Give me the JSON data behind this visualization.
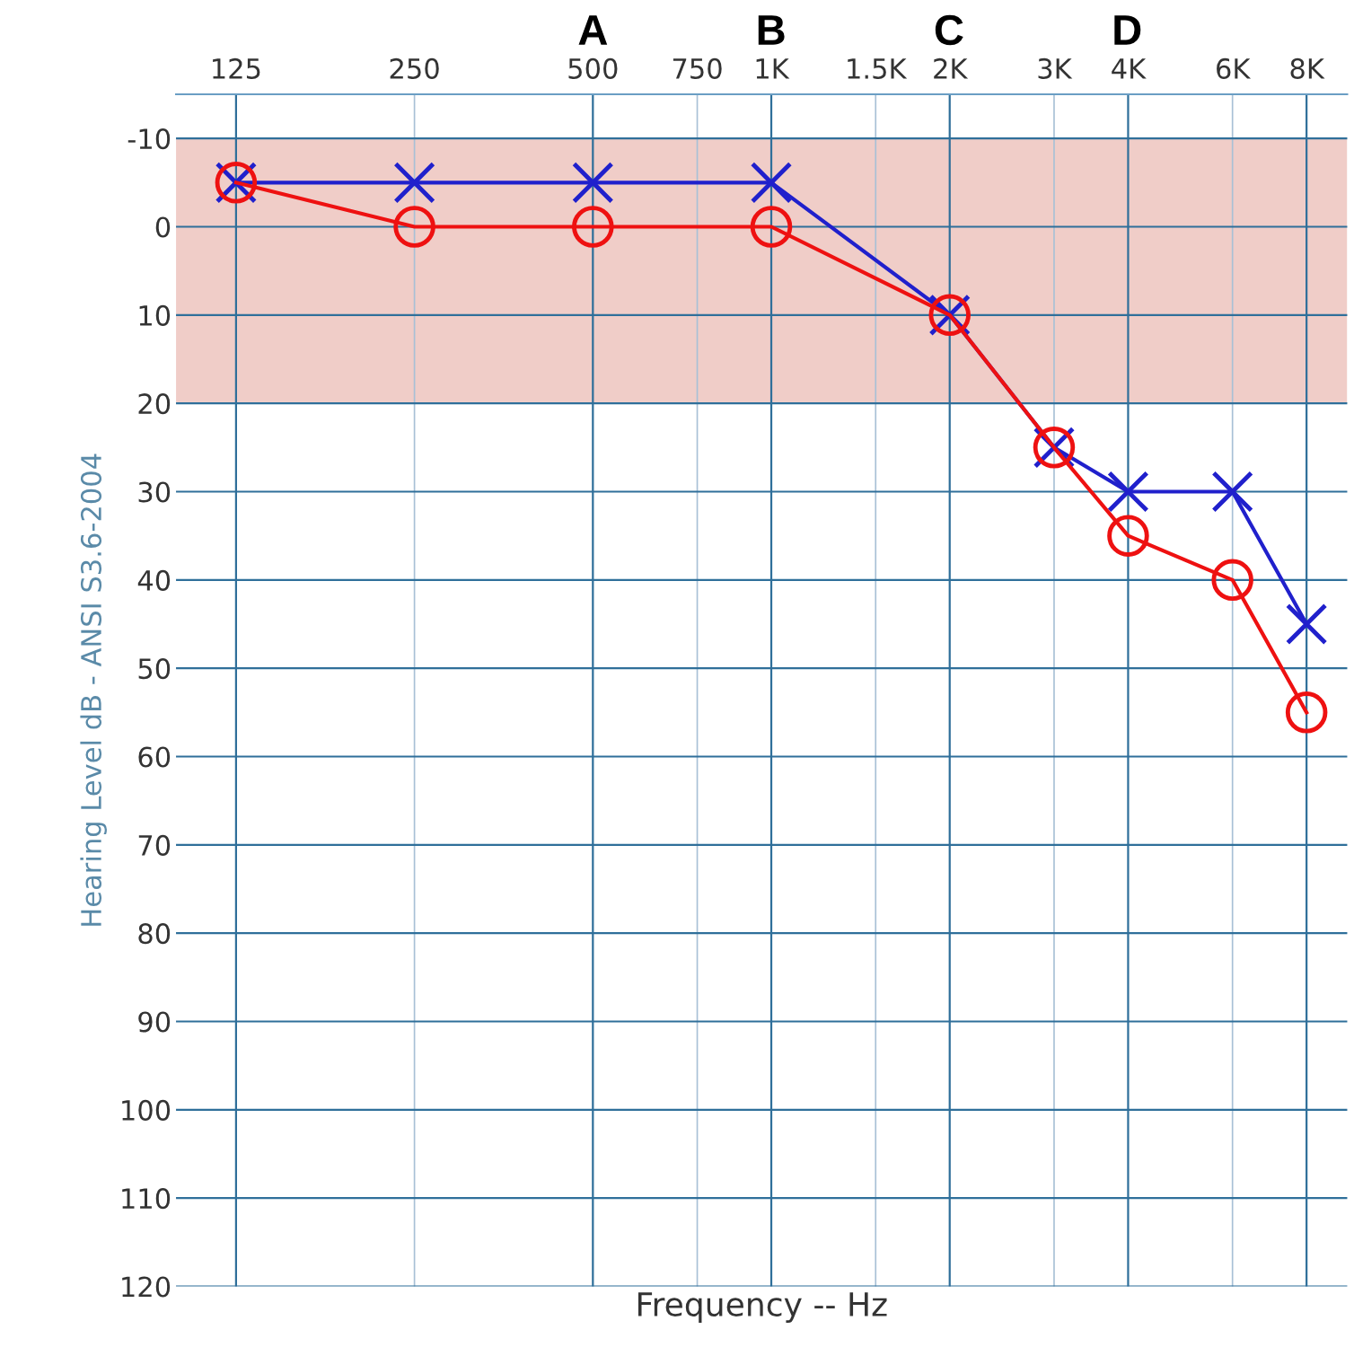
{
  "chart_data": {
    "type": "line",
    "xlabel": "Frequency -- Hz",
    "ylabel": "Hearing Level dB - ANSI S3.6-2004",
    "log": "x",
    "xlim": [
      99,
      9370
    ],
    "ylim": [
      120,
      -15
    ],
    "xticks": [
      125,
      250,
      500,
      {
        "value": 750,
        "label": "750"
      },
      {
        "value": 1000,
        "label": "1K"
      },
      {
        "value": 1500,
        "label": "1.5K"
      },
      {
        "value": 2000,
        "label": "2K"
      },
      {
        "value": 3000,
        "label": "3K"
      },
      {
        "value": 4000,
        "label": "4K"
      },
      {
        "value": 6000,
        "label": "6K"
      },
      {
        "value": 8000,
        "label": "8K"
      }
    ],
    "yticks": [
      -10,
      0,
      10,
      20,
      30,
      40,
      50,
      60,
      70,
      80,
      90,
      100,
      110,
      120
    ],
    "grid": true,
    "x": [
      125,
      250,
      500,
      1000,
      2000,
      3000,
      4000,
      6000,
      8000
    ],
    "series": [
      {
        "color": "#2020cc",
        "marker": "cross",
        "values": [
          -5,
          -5,
          -5,
          -5,
          10,
          25,
          30,
          30,
          45
        ]
      },
      {
        "color": "#ee1111",
        "marker": "circle",
        "values": [
          -5,
          0,
          0,
          0,
          10,
          25,
          35,
          40,
          55
        ]
      }
    ],
    "bands": [
      {
        "axis": "y",
        "from": -10,
        "to": 20,
        "color": "#f0cdc8"
      }
    ],
    "annotations": [
      "A",
      "B",
      "C",
      "D"
    ]
  }
}
